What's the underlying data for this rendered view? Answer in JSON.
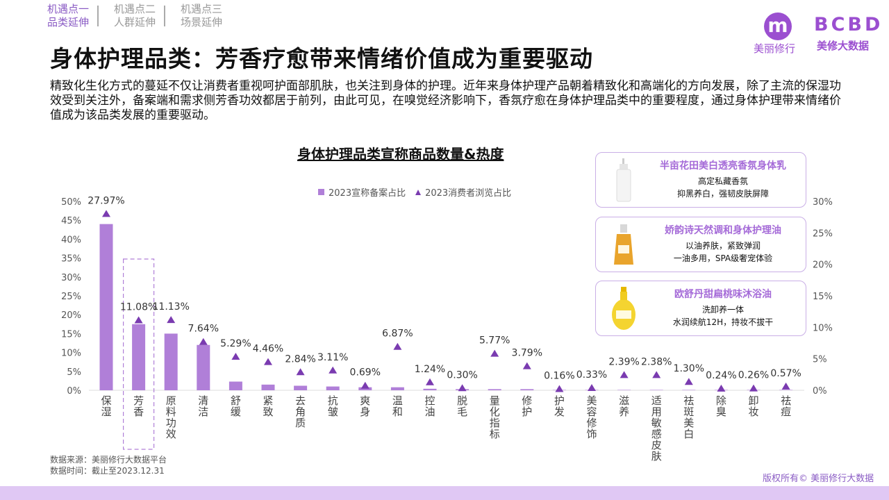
{
  "nav": [
    {
      "l1": "机遇点一",
      "l2": "品类延伸",
      "active": true
    },
    {
      "l1": "机遇点二",
      "l2": "人群延伸",
      "active": false
    },
    {
      "l1": "机遇点三",
      "l2": "场景延伸",
      "active": false
    }
  ],
  "logo_left": {
    "glyph": "m",
    "text": "美丽修行"
  },
  "logo_right": {
    "mark": "BCBD",
    "text": "美修大数据"
  },
  "title": "身体护理品类：芳香疗愈带来情绪价值成为重要驱动",
  "description": "精致化生化方式的蔓延不仅让消费者重视呵护面部肌肤，也关注到身体的护理。近年来身体护理产品朝着精致化和高端化的方向发展，除了主流的保湿功效受到关注外，备案端和需求侧芳香功效都居于前列，由此可见，在嗅觉经济影响下，香氛疗愈在身体护理品类中的重要程度，通过身体护理带来情绪价值成为该品类发展的重要驱动。",
  "products": [
    {
      "name": "半亩花田美白透亮香氛身体乳",
      "line1": "高定私藏香氛",
      "line2": "抑黑养白，强韧皮肤屏障",
      "icon": "lotion-bottle-icon"
    },
    {
      "name": "娇韵诗天然调和身体护理油",
      "line1": "以油养肤，紧致弹润",
      "line2": "一油多用，SPA级奢宠体验",
      "icon": "oil-bottle-icon"
    },
    {
      "name": "欧舒丹甜扁桃味沐浴油",
      "line1": "洗卸养一体",
      "line2": "水润续航12H，持妆不拔干",
      "icon": "shower-oil-bottle-icon"
    }
  ],
  "source": {
    "line1": "数据来源：美丽修行大数据平台",
    "line2": "数据时间：截止至2023.12.31"
  },
  "copyright": "版权所有© 美丽修行大数据",
  "chart_data": {
    "type": "bar",
    "title": "身体护理品类宣称商品数量&热度",
    "categories": [
      "保湿",
      "芳香",
      "原料功效",
      "清洁",
      "舒缓",
      "紧致",
      "去角质",
      "抗皱",
      "爽身",
      "温和",
      "控油",
      "脱毛",
      "量化指标",
      "修护",
      "护发",
      "美容修饰",
      "滋养",
      "适用敏感皮肤",
      "祛斑美白",
      "除臭",
      "卸妆",
      "祛痘"
    ],
    "highlight_category": "芳香",
    "series": [
      {
        "name": "2023宣称备案占比",
        "kind": "bar",
        "axis": "left",
        "color": "#b07fd8",
        "values": [
          44.0,
          17.5,
          15.0,
          12.0,
          2.3,
          1.5,
          1.2,
          1.0,
          0.8,
          0.8,
          0.4,
          0.3,
          0.3,
          0.3,
          0.1,
          0.1,
          0.1,
          0.1,
          0.1,
          0.1,
          0.1,
          0.1
        ]
      },
      {
        "name": "2023消费者浏览占比",
        "kind": "marker",
        "axis": "right",
        "color": "#7a3bb0",
        "values": [
          27.97,
          11.08,
          11.13,
          7.64,
          5.29,
          4.46,
          2.84,
          3.11,
          0.69,
          6.87,
          1.24,
          0.3,
          5.77,
          3.79,
          0.16,
          0.33,
          2.39,
          2.38,
          1.3,
          0.24,
          0.26,
          0.57
        ],
        "labels": [
          "27.97%",
          "11.08%",
          "11.13%",
          "7.64%",
          "5.29%",
          "4.46%",
          "2.84%",
          "3.11%",
          "0.69%",
          "6.87%",
          "1.24%",
          "0.30%",
          "5.77%",
          "3.79%",
          "0.16%",
          "0.33%",
          "2.39%",
          "2.38%",
          "1.30%",
          "0.24%",
          "0.26%",
          "0.57%"
        ]
      }
    ],
    "left_axis": {
      "min": 0,
      "max": 50,
      "ticks": [
        "0%",
        "5%",
        "10%",
        "15%",
        "20%",
        "25%",
        "30%",
        "35%",
        "40%",
        "45%",
        "50%"
      ]
    },
    "right_axis": {
      "min": 0,
      "max": 30,
      "ticks": [
        "0%",
        "5%",
        "10%",
        "15%",
        "20%",
        "25%",
        "30%"
      ]
    },
    "legend_position": "top"
  }
}
